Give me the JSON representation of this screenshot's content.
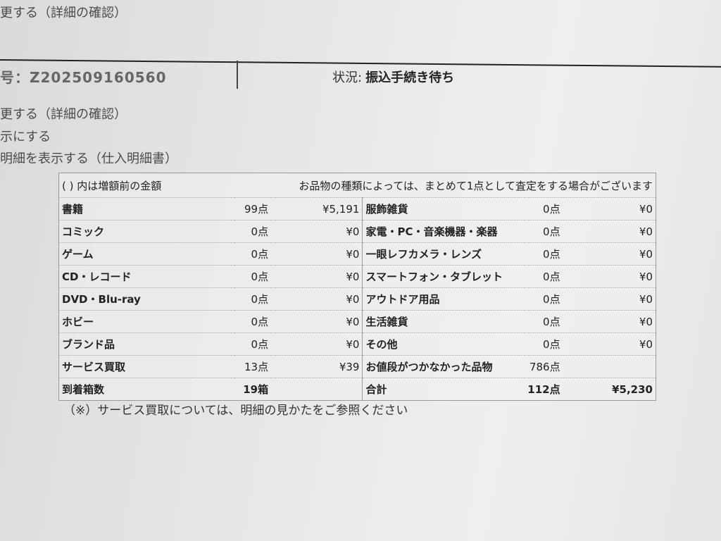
{
  "top_link": "更する（詳細の確認）",
  "order_number": "号：Z202509160560",
  "status": {
    "label": "状況:",
    "value": "振込手続き待ち"
  },
  "links": [
    "更する（詳細の確認）",
    "示にする",
    "明細を表示する（仕入明細書）"
  ],
  "table": {
    "note_left": "( ) 内は増額前の金額",
    "note_right": "お品物の種類によっては、まとめて1点として査定をする場合がございます",
    "rows": [
      {
        "l_name": "書籍",
        "l_count": "99点",
        "l_price": "¥5,191",
        "r_name": "服飾雑貨",
        "r_count": "0点",
        "r_price": "¥0"
      },
      {
        "l_name": "コミック",
        "l_count": "0点",
        "l_price": "¥0",
        "r_name": "家電・PC・音楽機器・楽器",
        "r_count": "0点",
        "r_price": "¥0"
      },
      {
        "l_name": "ゲーム",
        "l_count": "0点",
        "l_price": "¥0",
        "r_name": "一眼レフカメラ・レンズ",
        "r_count": "0点",
        "r_price": "¥0"
      },
      {
        "l_name": "CD・レコード",
        "l_count": "0点",
        "l_price": "¥0",
        "r_name": "スマートフォン・タブレット",
        "r_count": "0点",
        "r_price": "¥0"
      },
      {
        "l_name": "DVD・Blu-ray",
        "l_count": "0点",
        "l_price": "¥0",
        "r_name": "アウトドア用品",
        "r_count": "0点",
        "r_price": "¥0"
      },
      {
        "l_name": "ホビー",
        "l_count": "0点",
        "l_price": "¥0",
        "r_name": "生活雑貨",
        "r_count": "0点",
        "r_price": "¥0"
      },
      {
        "l_name": "ブランド品",
        "l_count": "0点",
        "l_price": "¥0",
        "r_name": "その他",
        "r_count": "0点",
        "r_price": "¥0"
      },
      {
        "l_name": "サービス買取",
        "l_count": "13点",
        "l_price": "¥39",
        "r_name": "お値段がつかなかった品物",
        "r_count": "786点",
        "r_price": ""
      }
    ],
    "footer": {
      "l_name": "到着箱数",
      "l_count": "19箱",
      "r_name": "合計",
      "r_count": "112点",
      "r_price": "¥5,230"
    }
  },
  "footnote": "（※）サービス買取については、明細の見かたをご参照ください"
}
